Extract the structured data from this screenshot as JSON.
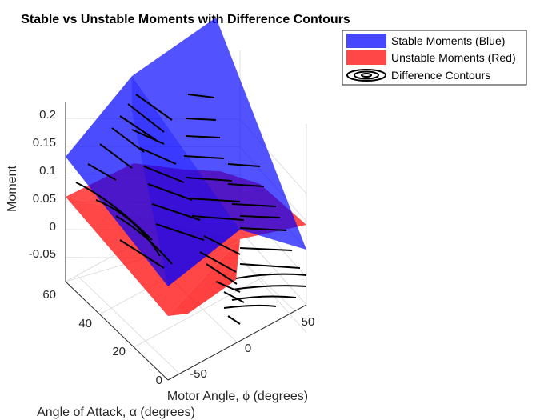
{
  "chart_data": {
    "type": "surface",
    "title": "Stable vs Unstable Moments with Difference Contours",
    "xlabel": "Motor Angle, ϕ (degrees)",
    "ylabel": "Angle of Attack, α (degrees)",
    "zlabel": "Moment",
    "x_ticks": [
      "-50",
      "0",
      "50"
    ],
    "y_ticks": [
      "0",
      "20",
      "40",
      "60"
    ],
    "z_ticks": [
      "-0.05",
      "0",
      "0.05",
      "0.1",
      "0.15",
      "0.2"
    ],
    "xlim": [
      -60,
      60
    ],
    "ylim": [
      0,
      60
    ],
    "zlim": [
      -0.1,
      0.24
    ],
    "grid": true,
    "legend_position": "top-right",
    "series": [
      {
        "name": "Stable Moments (Blue)",
        "kind": "surface",
        "color": "#0000ff",
        "description_points": [
          {
            "phi": -60,
            "alpha": 0,
            "moment": 0.12
          },
          {
            "phi": 0,
            "alpha": 0,
            "moment": 0.0
          },
          {
            "phi": 60,
            "alpha": 0,
            "moment": -0.05
          },
          {
            "phi": 0,
            "alpha": 60,
            "moment": 0.27
          },
          {
            "phi": 60,
            "alpha": 60,
            "moment": 0.17
          }
        ]
      },
      {
        "name": "Unstable Moments (Red)",
        "kind": "surface",
        "color": "#ff0000",
        "description_points": [
          {
            "phi": -60,
            "alpha": 0,
            "moment": 0.06
          },
          {
            "phi": 0,
            "alpha": 0,
            "moment": -0.11
          },
          {
            "phi": 60,
            "alpha": 0,
            "moment": -0.05
          },
          {
            "phi": 0,
            "alpha": 60,
            "moment": 0.1
          },
          {
            "phi": 60,
            "alpha": 60,
            "moment": 0.08
          }
        ]
      },
      {
        "name": "Difference Contours",
        "kind": "contour",
        "color": "#000000"
      }
    ]
  },
  "colors": {
    "stable": "#0000ff",
    "unstable": "#ff0000",
    "contour": "#000000",
    "axis": "#262626",
    "grid": "#dfdfdf"
  }
}
